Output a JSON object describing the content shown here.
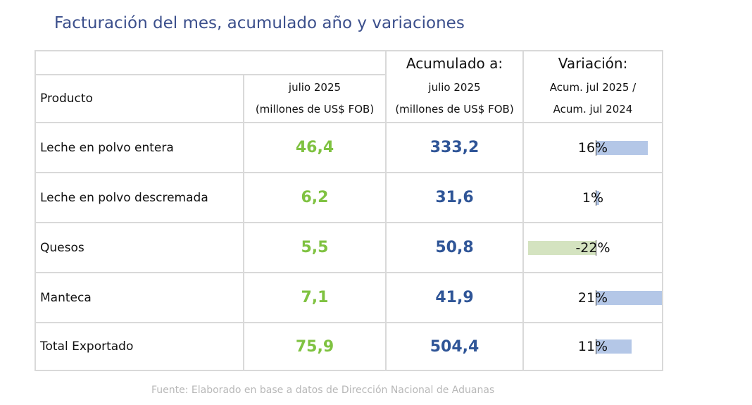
{
  "title": "Facturación del mes, acumulado año y variaciones",
  "header": {
    "acumulado_label": "Acumulado a:",
    "variacion_label": "Variación:",
    "producto_label": "Producto",
    "mes_line1": "julio 2025",
    "mes_line2": "(millones de US$ FOB)",
    "acum_line1": "julio 2025",
    "acum_line2": "(millones de US$ FOB)",
    "var_line1": "Acum. jul 2025 /",
    "var_line2": "Acum. jul 2024"
  },
  "rows": [
    {
      "producto": "Leche en polvo entera",
      "mes": "46,4",
      "acumulado": "333,2",
      "variacion": "16%",
      "var_value": 16
    },
    {
      "producto": "Leche en polvo descremada",
      "mes": "6,2",
      "acumulado": "31,6",
      "variacion": "1%",
      "var_value": 1
    },
    {
      "producto": "Quesos",
      "mes": "5,5",
      "acumulado": "50,8",
      "variacion": "-22%",
      "var_value": -22
    },
    {
      "producto": "Manteca",
      "mes": "7,1",
      "acumulado": "41,9",
      "variacion": "21%",
      "var_value": 21
    },
    {
      "producto": "Total Exportado",
      "mes": "75,9",
      "acumulado": "504,4",
      "variacion": "11%",
      "var_value": 11
    }
  ],
  "source": "Fuente: Elaborado en base a datos de Dirección Nacional de Aduanas",
  "colors": {
    "title": "#3b4f8c",
    "mes_values": "#7fc241",
    "acumulado_values": "#2f5597",
    "positive_bar": "#b4c7e7",
    "negative_bar": "#d4e3c0",
    "grid": "#d9d9d9",
    "source": "#b8b8b8"
  }
}
